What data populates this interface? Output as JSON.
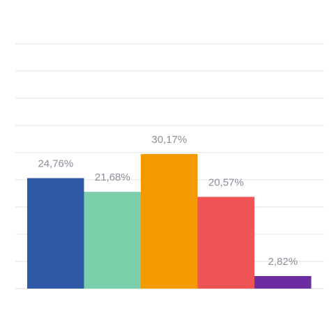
{
  "chart_data": {
    "type": "bar",
    "series": [
      {
        "values": [
          24.76,
          21.68,
          30.17,
          20.57,
          2.82
        ]
      }
    ],
    "values": [
      24.76,
      21.68,
      30.17,
      20.57,
      2.82
    ],
    "labels": [
      "24,76%",
      "21,68%",
      "30,17%",
      "20,57%",
      "2,82%"
    ],
    "colors": [
      "#2E5AA8",
      "#7BCFAB",
      "#F29A00",
      "#F05555",
      "#6C2DA0"
    ],
    "ylim": [
      0,
      45
    ],
    "grid": true,
    "legend": "none",
    "title": "",
    "xlabel": "",
    "ylabel": ""
  },
  "style": {
    "grid_color": "#E3E3E3",
    "label_color": "#8A8F99",
    "background": "#FFFFFF"
  }
}
